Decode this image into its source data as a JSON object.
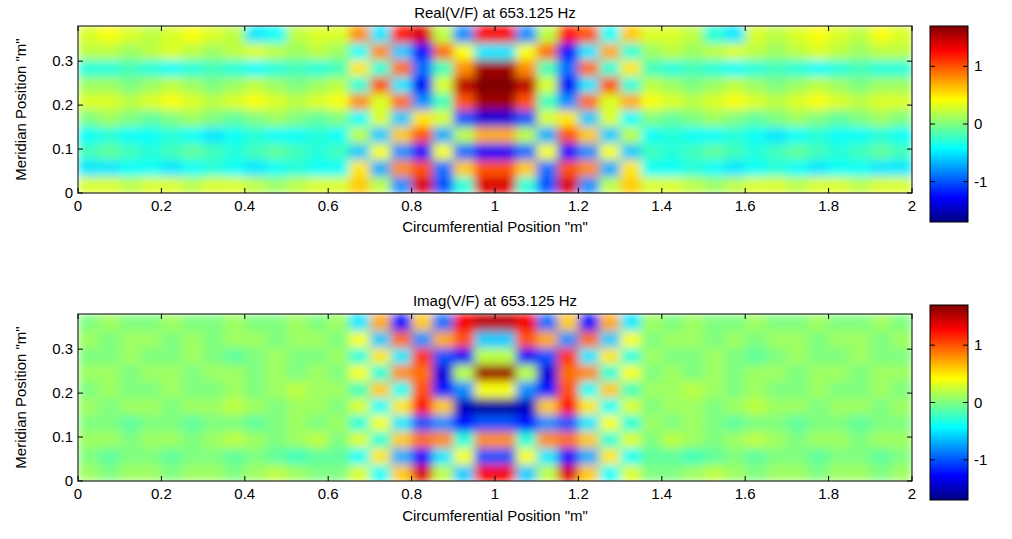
{
  "chart_data": [
    {
      "type": "heatmap",
      "title": "Real(V/F) at 653.125 Hz",
      "x_label": "Circumferential Position \"m\"",
      "y_label": "Meridian Position \"m\"",
      "xlim": [
        0,
        2
      ],
      "ylim": [
        0,
        0.38
      ],
      "xticks": [
        0,
        0.2,
        0.4,
        0.6,
        0.8,
        1,
        1.2,
        1.4,
        1.6,
        1.8,
        2
      ],
      "yticks": [
        0,
        0.1,
        0.2,
        0.3
      ],
      "colorbar": {
        "lim": [
          -1.7,
          1.7
        ],
        "ticks": [
          -1,
          0,
          1
        ]
      },
      "z": [
        [
          0.3,
          0.3,
          0.2,
          0.3,
          0.3,
          0.2,
          0.3,
          0.3,
          0.2,
          0.1,
          0.2,
          0.3,
          0.3,
          0.6,
          0.2,
          -0.8,
          1.4,
          -1.0,
          -0.3,
          1.4,
          1.4,
          -0.3,
          -1.0,
          1.4,
          -0.8,
          0.2,
          0.6,
          0.3,
          0.3,
          0.2,
          0.1,
          0.2,
          0.3,
          0.3,
          0.2,
          0.3,
          0.3,
          0.2,
          0.3,
          0.3
        ],
        [
          -0.5,
          -0.5,
          -0.4,
          -0.4,
          -0.5,
          -0.4,
          -0.3,
          -0.4,
          -0.5,
          -0.4,
          -0.3,
          -0.4,
          -0.4,
          0.5,
          -0.7,
          0.8,
          1.0,
          -0.9,
          0.6,
          1.0,
          1.0,
          0.6,
          -0.9,
          1.0,
          0.8,
          -0.7,
          0.5,
          -0.4,
          -0.4,
          -0.3,
          -0.4,
          -0.5,
          -0.4,
          -0.3,
          -0.4,
          -0.5,
          -0.4,
          -0.4,
          -0.5,
          -0.5
        ],
        [
          -0.2,
          -0.1,
          -0.2,
          -0.3,
          -0.2,
          -0.1,
          -0.2,
          -0.3,
          -0.2,
          -0.1,
          -0.2,
          -0.3,
          -0.2,
          -0.6,
          0.4,
          -0.8,
          -1.2,
          0.4,
          -0.9,
          -1.3,
          -1.3,
          -0.9,
          0.4,
          -1.2,
          -0.8,
          0.4,
          -0.6,
          -0.2,
          -0.3,
          -0.2,
          -0.1,
          -0.2,
          -0.3,
          -0.2,
          -0.1,
          -0.2,
          -0.3,
          -0.2,
          -0.1,
          -0.2
        ],
        [
          -0.4,
          -0.3,
          -0.4,
          -0.4,
          -0.3,
          -0.4,
          -0.5,
          -0.4,
          -0.3,
          -0.4,
          -0.4,
          -0.3,
          -0.4,
          0.2,
          -0.6,
          0.6,
          1.0,
          -0.7,
          0.2,
          0.7,
          0.7,
          0.2,
          -0.7,
          1.0,
          0.6,
          -0.6,
          0.2,
          -0.4,
          -0.3,
          -0.4,
          -0.4,
          -0.3,
          -0.4,
          -0.5,
          -0.4,
          -0.3,
          -0.4,
          -0.4,
          -0.3,
          -0.4
        ],
        [
          0.0,
          0.1,
          0.0,
          -0.1,
          0.0,
          0.1,
          0.0,
          -0.1,
          0.0,
          0.1,
          0.0,
          -0.1,
          0.0,
          -0.4,
          0.3,
          -0.6,
          0.5,
          0.3,
          -1.0,
          -1.4,
          -1.4,
          -1.0,
          0.3,
          0.5,
          -0.6,
          0.3,
          -0.4,
          0.0,
          -0.1,
          0.0,
          0.1,
          0.0,
          -0.1,
          0.0,
          0.1,
          0.0,
          -0.1,
          0.0,
          0.1,
          0.0
        ],
        [
          0.3,
          0.3,
          0.2,
          0.3,
          0.4,
          0.3,
          0.2,
          0.3,
          0.4,
          0.3,
          0.2,
          0.3,
          0.4,
          0.8,
          0.3,
          0.9,
          -0.8,
          -0.2,
          1.0,
          1.6,
          1.6,
          1.0,
          -0.2,
          -0.8,
          0.9,
          0.3,
          0.7,
          0.4,
          0.3,
          0.2,
          0.3,
          0.4,
          0.3,
          0.2,
          0.3,
          0.4,
          0.3,
          0.2,
          0.3,
          0.3
        ],
        [
          0.1,
          0.1,
          0.0,
          0.1,
          0.2,
          0.1,
          0.0,
          0.1,
          0.2,
          0.1,
          0.0,
          0.1,
          0.2,
          -0.3,
          1.0,
          -0.5,
          -1.3,
          0.3,
          1.5,
          1.7,
          1.7,
          1.5,
          0.3,
          -1.3,
          -0.5,
          1.0,
          -0.3,
          0.2,
          0.1,
          0.0,
          0.1,
          0.2,
          0.1,
          0.0,
          0.1,
          0.2,
          0.1,
          0.0,
          0.1,
          0.1
        ],
        [
          -0.3,
          -0.3,
          -0.2,
          -0.3,
          -0.4,
          -0.3,
          -0.2,
          -0.3,
          -0.4,
          -0.3,
          -0.2,
          -0.3,
          -0.2,
          0.5,
          -0.3,
          0.9,
          -0.9,
          -0.2,
          0.8,
          1.6,
          1.6,
          0.8,
          -0.2,
          -0.9,
          0.9,
          -0.3,
          0.5,
          -0.2,
          -0.3,
          -0.2,
          -0.3,
          -0.4,
          -0.3,
          -0.2,
          -0.3,
          -0.4,
          -0.3,
          -0.2,
          -0.3,
          -0.3
        ],
        [
          0.2,
          0.2,
          0.1,
          0.2,
          0.3,
          0.2,
          0.1,
          0.2,
          0.3,
          0.2,
          0.1,
          0.2,
          0.1,
          -0.4,
          0.8,
          -0.6,
          -1.2,
          0.9,
          0.4,
          -0.5,
          -0.5,
          0.4,
          0.9,
          -1.2,
          -0.5,
          0.7,
          -0.3,
          0.1,
          0.2,
          0.1,
          0.2,
          0.3,
          0.2,
          0.1,
          0.2,
          0.3,
          0.2,
          0.1,
          0.2,
          0.2
        ],
        [
          0.3,
          0.4,
          0.3,
          0.2,
          0.3,
          0.4,
          0.3,
          0.2,
          -0.5,
          -0.4,
          0.2,
          0.3,
          0.3,
          0.8,
          -0.5,
          1.2,
          1.4,
          0.2,
          -0.8,
          1.3,
          1.3,
          -0.8,
          0.2,
          1.2,
          1.0,
          -0.4,
          0.6,
          0.3,
          0.3,
          0.2,
          -0.3,
          -0.5,
          0.3,
          0.2,
          0.3,
          0.4,
          0.3,
          0.2,
          0.4,
          0.3
        ]
      ]
    },
    {
      "type": "heatmap",
      "title": "Imag(V/F) at 653.125 Hz",
      "x_label": "Circumferential Position \"m\"",
      "y_label": "Meridian Position \"m\"",
      "xlim": [
        0,
        2
      ],
      "ylim": [
        0,
        0.38
      ],
      "xticks": [
        0,
        0.2,
        0.4,
        0.6,
        0.8,
        1,
        1.2,
        1.4,
        1.6,
        1.8,
        2
      ],
      "yticks": [
        0,
        0.1,
        0.2,
        0.3
      ],
      "colorbar": {
        "lim": [
          -1.7,
          1.7
        ],
        "ticks": [
          -1,
          0,
          1
        ]
      },
      "z": [
        [
          0.1,
          0.0,
          0.1,
          0.1,
          0.0,
          0.1,
          0.1,
          0.0,
          0.1,
          0.2,
          0.1,
          0.0,
          0.0,
          0.3,
          -0.4,
          0.6,
          1.4,
          0.2,
          -0.6,
          1.3,
          1.3,
          -0.6,
          0.2,
          1.4,
          0.6,
          -0.4,
          0.3,
          0.0,
          0.0,
          0.1,
          0.2,
          0.1,
          0.0,
          0.1,
          0.1,
          0.0,
          0.1,
          0.1,
          0.0,
          0.1
        ],
        [
          0.0,
          -0.1,
          0.0,
          0.0,
          -0.1,
          0.0,
          0.0,
          -0.1,
          0.0,
          -0.1,
          -0.2,
          -0.1,
          -0.1,
          -0.4,
          0.5,
          -0.7,
          -1.2,
          -0.5,
          0.4,
          -1.0,
          -1.0,
          0.4,
          -0.5,
          -1.2,
          -0.7,
          0.5,
          -0.4,
          -0.1,
          -0.1,
          -0.2,
          -0.1,
          0.0,
          -0.1,
          0.0,
          0.0,
          -0.1,
          0.0,
          0.0,
          -0.1,
          0.0
        ],
        [
          0.1,
          0.1,
          0.0,
          0.1,
          0.1,
          0.0,
          0.1,
          0.2,
          0.1,
          0.0,
          0.1,
          0.2,
          0.0,
          0.3,
          -0.3,
          0.6,
          0.9,
          0.8,
          -0.3,
          0.8,
          0.8,
          -0.3,
          0.8,
          0.9,
          0.6,
          -0.3,
          0.3,
          0.0,
          0.2,
          0.1,
          0.0,
          0.1,
          0.2,
          0.1,
          0.0,
          0.1,
          0.1,
          0.0,
          0.1,
          0.1
        ],
        [
          0.0,
          0.0,
          -0.1,
          0.0,
          0.0,
          -0.1,
          0.0,
          0.0,
          -0.1,
          0.0,
          0.1,
          0.0,
          0.1,
          -0.3,
          0.4,
          -0.5,
          -1.0,
          -0.8,
          -1.2,
          -1.0,
          -1.0,
          -1.2,
          -0.8,
          -1.0,
          -0.5,
          0.4,
          -0.3,
          0.1,
          0.0,
          0.1,
          0.0,
          -0.1,
          0.0,
          0.0,
          -0.1,
          0.0,
          0.0,
          -0.1,
          0.0,
          0.0
        ],
        [
          0.1,
          0.0,
          0.1,
          0.1,
          0.0,
          0.1,
          0.1,
          0.2,
          0.1,
          0.0,
          0.1,
          0.1,
          0.0,
          0.3,
          -0.4,
          0.5,
          1.2,
          0.6,
          -1.5,
          -1.6,
          -1.6,
          -1.5,
          0.6,
          1.2,
          0.5,
          -0.4,
          0.3,
          0.0,
          0.1,
          0.1,
          0.0,
          0.1,
          0.2,
          0.1,
          0.1,
          0.0,
          0.1,
          0.1,
          0.0,
          0.1
        ],
        [
          0.0,
          0.1,
          0.0,
          0.0,
          0.1,
          0.0,
          0.0,
          0.1,
          0.0,
          0.1,
          0.2,
          0.1,
          0.1,
          -0.2,
          0.6,
          -0.4,
          1.0,
          -1.2,
          -0.8,
          0.4,
          0.4,
          -0.8,
          -1.2,
          1.0,
          -0.4,
          0.6,
          -0.2,
          0.1,
          0.1,
          0.2,
          0.1,
          0.0,
          0.1,
          0.0,
          0.0,
          0.1,
          0.0,
          0.0,
          0.1,
          0.0
        ],
        [
          0.1,
          0.1,
          0.0,
          0.1,
          0.1,
          0.0,
          0.1,
          0.1,
          0.0,
          0.1,
          0.0,
          0.1,
          0.0,
          0.4,
          -0.3,
          0.8,
          0.9,
          -1.4,
          0.2,
          1.6,
          1.6,
          0.2,
          -1.4,
          0.9,
          0.8,
          -0.3,
          0.4,
          0.0,
          0.1,
          0.0,
          0.1,
          0.0,
          0.1,
          0.1,
          0.0,
          0.1,
          0.1,
          0.0,
          0.1,
          0.1
        ],
        [
          0.0,
          0.0,
          0.1,
          0.0,
          0.0,
          0.1,
          0.0,
          -0.1,
          0.0,
          0.1,
          0.0,
          0.0,
          0.1,
          -0.3,
          0.5,
          -0.5,
          1.1,
          -1.0,
          -1.3,
          0.2,
          0.2,
          -1.3,
          -1.0,
          1.1,
          -0.5,
          0.5,
          -0.3,
          0.1,
          0.0,
          0.0,
          0.1,
          0.0,
          -0.1,
          0.0,
          0.1,
          0.0,
          0.0,
          0.1,
          0.0,
          0.0
        ],
        [
          0.1,
          0.0,
          0.1,
          0.1,
          0.0,
          0.1,
          0.0,
          0.1,
          0.1,
          0.0,
          0.1,
          0.1,
          0.0,
          0.4,
          -0.6,
          0.9,
          -0.8,
          0.7,
          1.0,
          -0.6,
          -0.6,
          1.0,
          0.7,
          -0.8,
          0.9,
          -0.6,
          0.4,
          0.0,
          0.1,
          0.1,
          0.0,
          0.1,
          0.0,
          0.1,
          0.1,
          0.0,
          0.1,
          0.1,
          0.0,
          0.1
        ],
        [
          0.0,
          0.1,
          0.0,
          0.0,
          0.1,
          0.0,
          0.0,
          0.1,
          0.0,
          0.0,
          0.1,
          0.0,
          0.1,
          -0.5,
          0.7,
          -1.2,
          0.6,
          -0.9,
          1.3,
          1.5,
          1.5,
          1.3,
          -0.9,
          0.6,
          -1.2,
          0.7,
          -0.5,
          0.1,
          0.0,
          0.1,
          0.0,
          0.0,
          0.1,
          0.0,
          0.0,
          0.1,
          0.0,
          0.0,
          0.1,
          0.0
        ]
      ]
    }
  ]
}
